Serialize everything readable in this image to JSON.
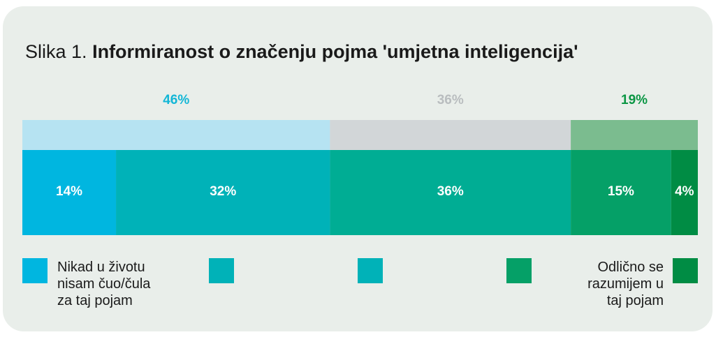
{
  "title": {
    "prefix": "Slika 1.",
    "main": "Informiranost o značenju pojma 'umjetna inteligencija'"
  },
  "chart_data": {
    "type": "bar",
    "orientation": "horizontal-stacked",
    "unit": "%",
    "groups": [
      {
        "label": "46%",
        "value": 46,
        "color": "#b6e3f2",
        "text_color": "#12b6d6"
      },
      {
        "label": "36%",
        "value": 36,
        "color": "#d2d6d8",
        "text_color": "#b9bdbf"
      },
      {
        "label": "19%",
        "value": 19,
        "color": "#7bbc8f",
        "text_color": "#0b9644"
      }
    ],
    "segments": [
      {
        "label": "14%",
        "value": 14,
        "color": "#00b6e0"
      },
      {
        "label": "32%",
        "value": 32,
        "color": "#00b2b8"
      },
      {
        "label": "36%",
        "value": 36,
        "color": "#00ad94"
      },
      {
        "label": "15%",
        "value": 15,
        "color": "#05a067"
      },
      {
        "label": "4%",
        "value": 4,
        "color": "#008c44"
      }
    ],
    "legend": [
      {
        "color": "#00b6e0",
        "lines": [
          "Nikad u životu",
          "nisam čuo/čula",
          "za taj pojam"
        ],
        "align": "left"
      },
      {
        "color": "#00b2b8",
        "lines": [],
        "align": "left"
      },
      {
        "color": "#00b2b8",
        "lines": [],
        "align": "left"
      },
      {
        "color": "#05a067",
        "lines": [],
        "align": "left"
      },
      {
        "color": "#008c44",
        "lines": [
          "Odlično se",
          "razumijem u",
          "taj pojam"
        ],
        "align": "right"
      }
    ]
  }
}
